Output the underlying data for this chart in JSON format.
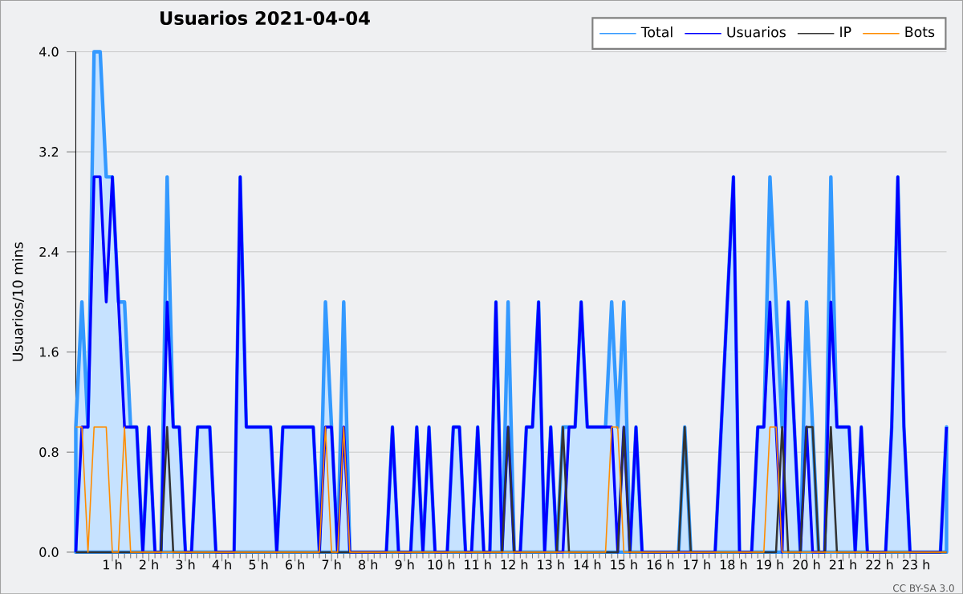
{
  "chart_data": {
    "type": "line",
    "title": "Usuarios  2021-04-04",
    "ylabel": "Usuarios/10 mins",
    "annotations": [
      "CC BY-SA 3.0"
    ],
    "x": [
      0,
      0.167,
      0.333,
      0.5,
      0.667,
      0.833,
      1,
      1.167,
      1.333,
      1.5,
      1.667,
      1.833,
      2,
      2.167,
      2.333,
      2.5,
      2.667,
      2.833,
      3,
      3.167,
      3.333,
      3.5,
      3.667,
      3.833,
      4,
      4.167,
      4.333,
      4.5,
      4.667,
      4.833,
      5,
      5.167,
      5.333,
      5.5,
      5.667,
      5.833,
      6,
      6.167,
      6.333,
      6.5,
      6.667,
      6.833,
      7,
      7.167,
      7.333,
      7.5,
      7.667,
      7.833,
      8,
      8.167,
      8.333,
      8.5,
      8.667,
      8.833,
      9,
      9.167,
      9.333,
      9.5,
      9.667,
      9.833,
      10,
      10.167,
      10.333,
      10.5,
      10.667,
      10.833,
      11,
      11.167,
      11.333,
      11.5,
      11.667,
      11.833,
      12,
      12.167,
      12.333,
      12.5,
      12.667,
      12.833,
      13,
      13.167,
      13.333,
      13.5,
      13.667,
      13.833,
      14,
      14.167,
      14.333,
      14.5,
      14.667,
      14.833,
      15,
      15.167,
      15.333,
      15.5,
      15.667,
      15.833,
      16,
      16.167,
      16.333,
      16.5,
      16.667,
      16.833,
      17,
      17.167,
      17.333,
      17.5,
      17.667,
      17.833,
      18,
      18.167,
      18.333,
      18.5,
      18.667,
      18.833,
      19,
      19.167,
      19.333,
      19.5,
      19.667,
      19.833,
      20,
      20.167,
      20.333,
      20.5,
      20.667,
      20.833,
      21,
      21.167,
      21.333,
      21.5,
      21.667,
      21.833,
      22,
      22.167,
      22.333,
      22.5,
      22.667,
      22.833,
      23,
      23.167,
      23.333,
      23.5,
      23.667,
      23.833
    ],
    "series": [
      {
        "name": "Total",
        "type": "area",
        "color": "#3399ff",
        "values": [
          1,
          2,
          1,
          4,
          4,
          3,
          3,
          2,
          2,
          1,
          1,
          0,
          1,
          0,
          0,
          3,
          1,
          1,
          0,
          0,
          1,
          1,
          1,
          0,
          0,
          0,
          0,
          3,
          1,
          1,
          1,
          1,
          1,
          0,
          1,
          1,
          1,
          1,
          1,
          1,
          0,
          2,
          1,
          0,
          2,
          0,
          0,
          0,
          0,
          0,
          0,
          0,
          1,
          0,
          0,
          0,
          1,
          0,
          1,
          0,
          0,
          0,
          1,
          1,
          0,
          0,
          1,
          0,
          0,
          2,
          0,
          2,
          0,
          0,
          1,
          1,
          2,
          0,
          1,
          0,
          1,
          1,
          1,
          2,
          1,
          1,
          1,
          1,
          2,
          1,
          2,
          0,
          1,
          0,
          0,
          0,
          0,
          0,
          0,
          0,
          1,
          0,
          0,
          0,
          0,
          0,
          1,
          2,
          3,
          0,
          0,
          0,
          1,
          1,
          3,
          2,
          1,
          2,
          1,
          0,
          2,
          1,
          0,
          0,
          3,
          1,
          1,
          1,
          0,
          1,
          0,
          0,
          0,
          0,
          1,
          3,
          1,
          0,
          0,
          0,
          0,
          0,
          0,
          1
        ]
      },
      {
        "name": "Usuarios",
        "color": "#0000ff",
        "values": [
          0,
          1,
          1,
          3,
          3,
          2,
          3,
          2,
          1,
          1,
          1,
          0,
          1,
          0,
          0,
          2,
          1,
          1,
          0,
          0,
          1,
          1,
          1,
          0,
          0,
          0,
          0,
          3,
          1,
          1,
          1,
          1,
          1,
          0,
          1,
          1,
          1,
          1,
          1,
          1,
          0,
          1,
          1,
          0,
          1,
          0,
          0,
          0,
          0,
          0,
          0,
          0,
          1,
          0,
          0,
          0,
          1,
          0,
          1,
          0,
          0,
          0,
          1,
          1,
          0,
          0,
          1,
          0,
          0,
          2,
          0,
          1,
          0,
          0,
          1,
          1,
          2,
          0,
          1,
          0,
          0,
          1,
          1,
          2,
          1,
          1,
          1,
          1,
          1,
          0,
          1,
          0,
          1,
          0,
          0,
          0,
          0,
          0,
          0,
          0,
          0,
          0,
          0,
          0,
          0,
          0,
          1,
          2,
          3,
          0,
          0,
          0,
          1,
          1,
          2,
          1,
          0,
          2,
          1,
          0,
          1,
          0,
          0,
          0,
          2,
          1,
          1,
          1,
          0,
          1,
          0,
          0,
          0,
          0,
          1,
          3,
          1,
          0,
          0,
          0,
          0,
          0,
          0,
          1
        ]
      },
      {
        "name": "IP",
        "color": "#333333",
        "values": [
          0,
          0,
          0,
          0,
          0,
          0,
          0,
          0,
          0,
          0,
          0,
          0,
          0,
          0,
          0,
          1,
          0,
          0,
          0,
          0,
          0,
          0,
          0,
          0,
          0,
          0,
          0,
          0,
          0,
          0,
          0,
          0,
          0,
          0,
          0,
          0,
          0,
          0,
          0,
          0,
          0,
          0,
          0,
          0,
          0,
          0,
          0,
          0,
          0,
          0,
          0,
          0,
          0,
          0,
          0,
          0,
          0,
          0,
          0,
          0,
          0,
          0,
          0,
          0,
          0,
          0,
          0,
          0,
          0,
          0,
          0,
          1,
          0,
          0,
          0,
          0,
          0,
          0,
          0,
          0,
          1,
          0,
          0,
          0,
          0,
          0,
          0,
          0,
          0,
          0,
          1,
          0,
          0,
          0,
          0,
          0,
          0,
          0,
          0,
          0,
          1,
          0,
          0,
          0,
          0,
          0,
          0,
          0,
          0,
          0,
          0,
          0,
          0,
          0,
          0,
          0,
          1,
          0,
          0,
          0,
          1,
          1,
          0,
          0,
          1,
          0,
          0,
          0,
          0,
          0,
          0,
          0,
          0,
          0,
          0,
          0,
          0,
          0,
          0,
          0,
          0,
          0,
          0,
          0
        ]
      },
      {
        "name": "Bots",
        "color": "#ff8c00",
        "values": [
          1,
          1,
          0,
          1,
          1,
          1,
          0,
          0,
          1,
          0,
          0,
          0,
          0,
          0,
          0,
          0,
          0,
          0,
          0,
          0,
          0,
          0,
          0,
          0,
          0,
          0,
          0,
          0,
          0,
          0,
          0,
          0,
          0,
          0,
          0,
          0,
          0,
          0,
          0,
          0,
          0,
          1,
          0,
          0,
          1,
          0,
          0,
          0,
          0,
          0,
          0,
          0,
          0,
          0,
          0,
          0,
          0,
          0,
          0,
          0,
          0,
          0,
          0,
          0,
          0,
          0,
          0,
          0,
          0,
          0,
          0,
          0,
          0,
          0,
          0,
          0,
          0,
          0,
          0,
          0,
          0,
          0,
          0,
          0,
          0,
          0,
          0,
          0,
          1,
          1,
          0,
          0,
          0,
          0,
          0,
          0,
          0,
          0,
          0,
          0,
          0,
          0,
          0,
          0,
          0,
          0,
          0,
          0,
          0,
          0,
          0,
          0,
          0,
          0,
          1,
          1,
          0,
          0,
          0,
          0,
          0,
          0,
          0,
          0,
          0,
          0,
          0,
          0,
          0,
          0,
          0,
          0,
          0,
          0,
          0,
          0,
          0,
          0,
          0,
          0,
          0,
          0,
          0,
          0
        ]
      }
    ],
    "xlim": [
      0,
      23.833
    ],
    "xticks": [
      {
        "value": 1,
        "label": "1 h"
      },
      {
        "value": 2,
        "label": "2 h"
      },
      {
        "value": 3,
        "label": "3 h"
      },
      {
        "value": 4,
        "label": "4 h"
      },
      {
        "value": 5,
        "label": "5 h"
      },
      {
        "value": 6,
        "label": "6 h"
      },
      {
        "value": 7,
        "label": "7 h"
      },
      {
        "value": 8,
        "label": "8 h"
      },
      {
        "value": 9,
        "label": "9 h"
      },
      {
        "value": 10,
        "label": "10 h"
      },
      {
        "value": 11,
        "label": "11 h"
      },
      {
        "value": 12,
        "label": "12 h"
      },
      {
        "value": 13,
        "label": "13 h"
      },
      {
        "value": 14,
        "label": "14 h"
      },
      {
        "value": 15,
        "label": "15 h"
      },
      {
        "value": 16,
        "label": "16 h"
      },
      {
        "value": 17,
        "label": "17 h"
      },
      {
        "value": 18,
        "label": "18 h"
      },
      {
        "value": 19,
        "label": "19 h"
      },
      {
        "value": 20,
        "label": "20 h"
      },
      {
        "value": 21,
        "label": "21 h"
      },
      {
        "value": 22,
        "label": "22 h"
      },
      {
        "value": 23,
        "label": "23 h"
      }
    ],
    "ylim": [
      0,
      4
    ],
    "yticks": [
      {
        "value": 0,
        "label": "0.0"
      },
      0.8,
      1.6,
      2.4,
      3.2,
      {
        "value": 4,
        "label": "4.0"
      }
    ],
    "grid": "y",
    "legend": "top right"
  }
}
